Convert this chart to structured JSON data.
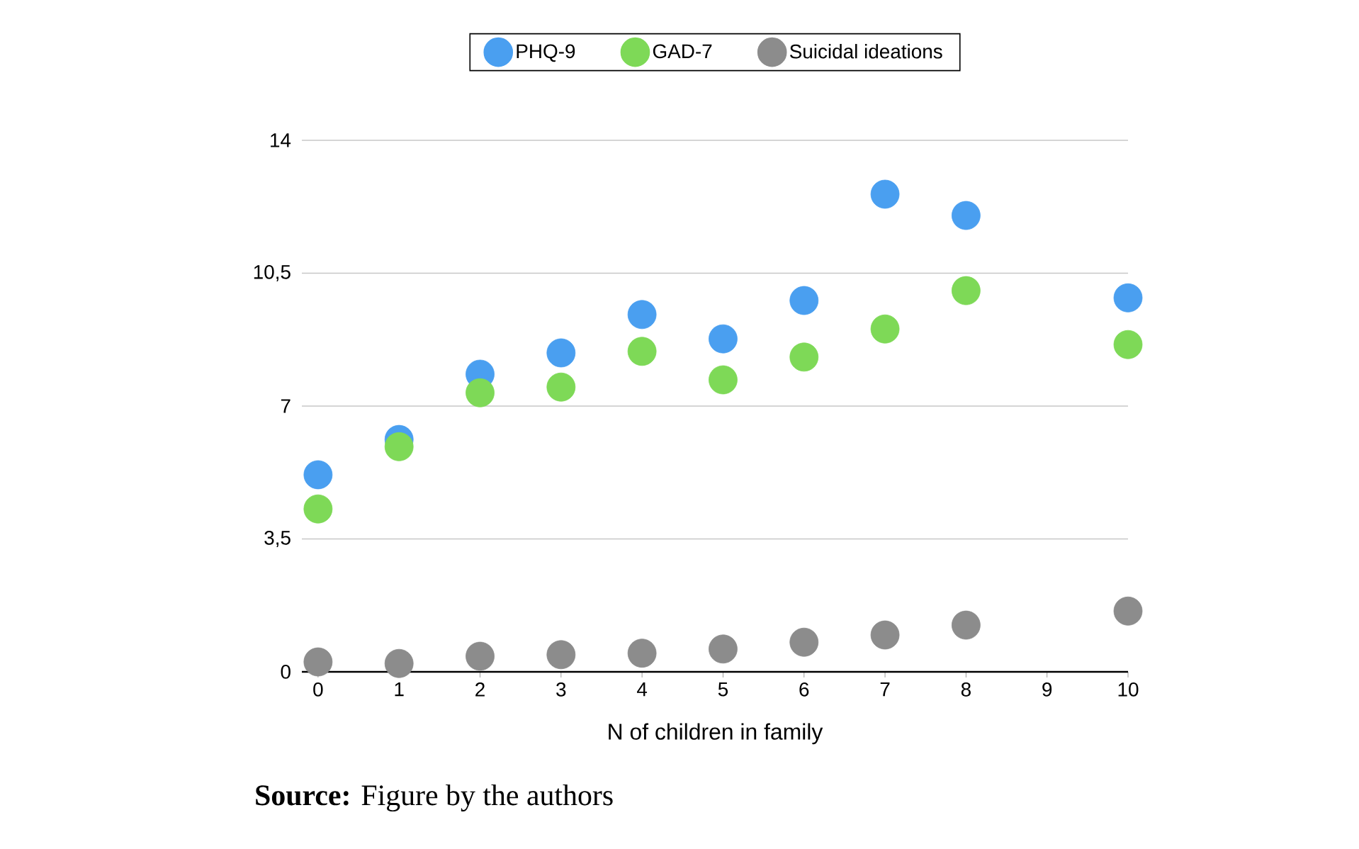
{
  "chart_data": {
    "type": "scatter",
    "xlabel": "N of children in family",
    "x": [
      0,
      1,
      2,
      3,
      4,
      5,
      6,
      7,
      8,
      10
    ],
    "series": [
      {
        "name": "PHQ-9",
        "color": "#4a9ff0",
        "values": [
          5.19,
          6.12,
          7.84,
          8.4,
          9.41,
          8.77,
          9.78,
          12.58,
          12.02,
          9.85
        ]
      },
      {
        "name": "GAD-7",
        "color": "#7ed957",
        "values": [
          4.29,
          5.93,
          7.35,
          7.5,
          8.44,
          7.69,
          8.29,
          9.03,
          10.04,
          8.62
        ]
      },
      {
        "name": "Suicidal ideations",
        "color": "#8c8c8c",
        "values": [
          0.26,
          0.22,
          0.41,
          0.45,
          0.49,
          0.6,
          0.78,
          0.97,
          1.23,
          1.6
        ]
      }
    ],
    "xlim": [
      -0.2,
      10
    ],
    "ylim": [
      0,
      14
    ],
    "xticks": [
      0,
      1,
      2,
      3,
      4,
      5,
      6,
      7,
      8,
      9,
      10
    ],
    "yticks": [
      0,
      {
        "value": 3.5,
        "label": "3,5"
      },
      7,
      {
        "value": 10.5,
        "label": "10,5"
      },
      14
    ],
    "grid": "y",
    "legend": "top",
    "marker": "circle",
    "annotations": [
      "**Source:** Figure by the authors"
    ]
  }
}
